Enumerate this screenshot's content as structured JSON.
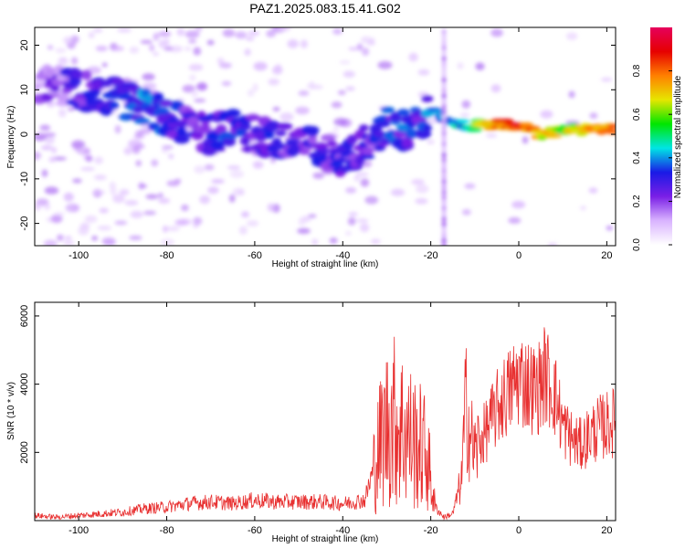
{
  "chart_data": [
    {
      "type": "heatmap",
      "title": "PAZ1.2025.083.15.41.G02",
      "xlabel": "Height of straight line (km)",
      "ylabel": "Frequency (Hz)",
      "xlim": [
        -110,
        22
      ],
      "ylim": [
        -25,
        24
      ],
      "x_ticks": [
        -100,
        -80,
        -60,
        -40,
        -20,
        0,
        20
      ],
      "y_ticks": [
        -20,
        -10,
        0,
        10,
        20
      ],
      "colorbar": {
        "label": "Normalized spectral amplitude",
        "range": [
          0,
          1
        ],
        "ticks": [
          0.0,
          0.2,
          0.4,
          0.6,
          0.8
        ],
        "colormap": [
          "#ffffff",
          "#d9b3ff",
          "#7a1fe6",
          "#1a1ae6",
          "#00e5e5",
          "#00e600",
          "#e6e600",
          "#ff8000",
          "#e60000",
          "#e6005c"
        ]
      },
      "ridge": [
        {
          "x": -108,
          "y": 11,
          "amp": 0.15
        },
        {
          "x": -100,
          "y": 10,
          "amp": 0.25
        },
        {
          "x": -90,
          "y": 8,
          "amp": 0.3
        },
        {
          "x": -85,
          "y": 6,
          "amp": 0.35
        },
        {
          "x": -80,
          "y": 4,
          "amp": 0.3
        },
        {
          "x": -75,
          "y": 2,
          "amp": 0.25
        },
        {
          "x": -70,
          "y": 0,
          "amp": 0.25
        },
        {
          "x": -65,
          "y": 2,
          "amp": 0.3
        },
        {
          "x": -60,
          "y": 0,
          "amp": 0.25
        },
        {
          "x": -55,
          "y": -2,
          "amp": 0.25
        },
        {
          "x": -50,
          "y": -2,
          "amp": 0.25
        },
        {
          "x": -45,
          "y": -3,
          "amp": 0.25
        },
        {
          "x": -40,
          "y": -6,
          "amp": 0.25
        },
        {
          "x": -35,
          "y": -2,
          "amp": 0.25
        },
        {
          "x": -30,
          "y": 2,
          "amp": 0.3
        },
        {
          "x": -25,
          "y": 1,
          "amp": 0.3
        },
        {
          "x": -22,
          "y": 3,
          "amp": 0.3
        },
        {
          "x": -20,
          "y": 6,
          "amp": 0.35
        },
        {
          "x": -15,
          "y": 2,
          "amp": 0.35
        },
        {
          "x": -10,
          "y": 2,
          "amp": 0.55
        },
        {
          "x": -5,
          "y": 2,
          "amp": 0.8
        },
        {
          "x": 0,
          "y": 2,
          "amp": 0.85
        },
        {
          "x": 5,
          "y": 0,
          "amp": 0.7
        },
        {
          "x": 10,
          "y": 1,
          "amp": 0.6
        },
        {
          "x": 15,
          "y": 1,
          "amp": 0.7
        },
        {
          "x": 20,
          "y": 1,
          "amp": 0.8
        }
      ]
    },
    {
      "type": "line",
      "xlabel": "Height of straight line (km)",
      "ylabel": "SNR (10 * v/v)",
      "xlim": [
        -110,
        22
      ],
      "ylim": [
        0,
        6400
      ],
      "x_ticks": [
        -100,
        -80,
        -60,
        -40,
        -20,
        0,
        20
      ],
      "y_ticks": [
        2000,
        4000,
        6000
      ],
      "color": "#e83030",
      "x": [
        -110,
        -105,
        -100,
        -95,
        -90,
        -85,
        -80,
        -75,
        -70,
        -65,
        -60,
        -55,
        -50,
        -45,
        -40,
        -35,
        -33,
        -31,
        -29,
        -27,
        -25,
        -23,
        -21,
        -19,
        -17,
        -15,
        -13,
        -12,
        -11,
        -10,
        -8,
        -6,
        -4,
        -2,
        0,
        2,
        4,
        6,
        8,
        10,
        12,
        14,
        16,
        18,
        20,
        22
      ],
      "values": [
        150,
        100,
        150,
        200,
        250,
        350,
        400,
        500,
        550,
        500,
        600,
        550,
        550,
        550,
        500,
        600,
        1500,
        2500,
        3000,
        2800,
        2500,
        2200,
        2000,
        400,
        100,
        200,
        1200,
        3500,
        2500,
        2000,
        2500,
        3000,
        3500,
        3800,
        4200,
        4000,
        3800,
        4300,
        3800,
        2800,
        2400,
        2200,
        2500,
        2700,
        2800,
        2900
      ]
    }
  ]
}
